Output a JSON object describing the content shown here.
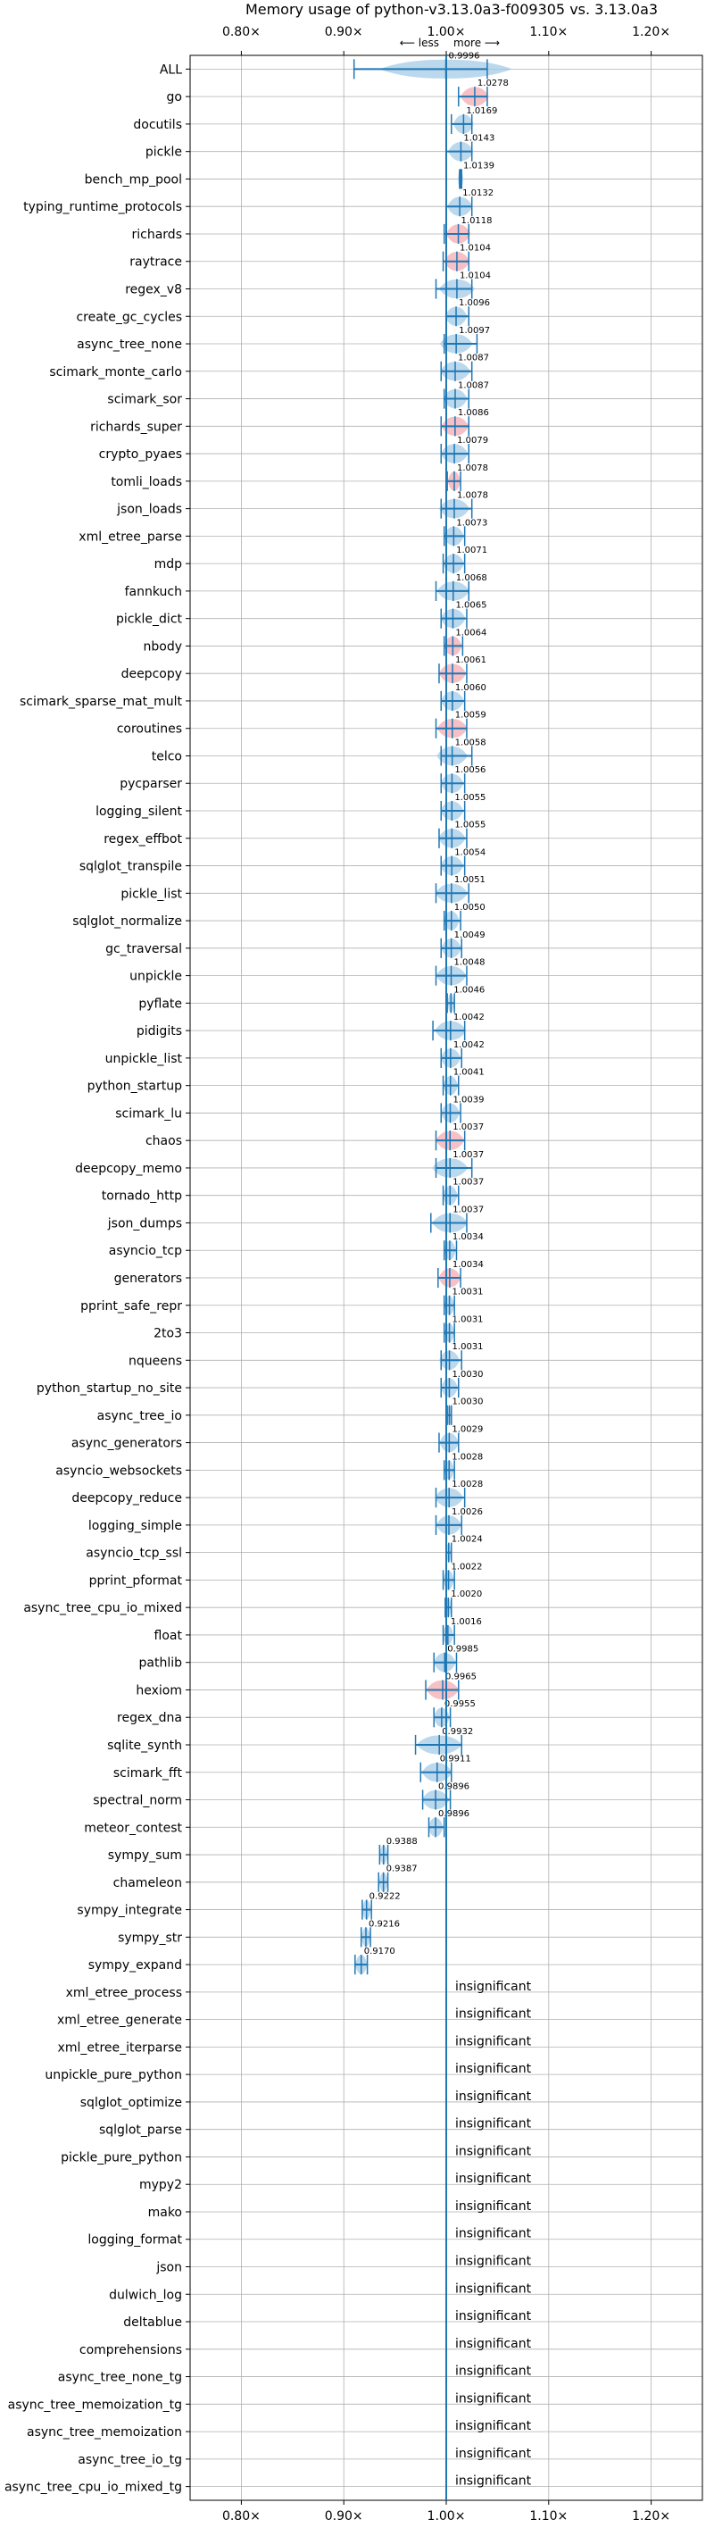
{
  "chart_data": {
    "type": "scatter",
    "title": "Memory usage of python-v3.13.0a3-f009305 vs. 3.13.0a3",
    "xlabel": "",
    "ylabel": "",
    "xlim": [
      0.75,
      1.25
    ],
    "x_ticks": [
      0.8,
      0.9,
      1.0,
      1.1,
      1.2
    ],
    "x_tick_labels": [
      "0.80×",
      "0.90×",
      "1.00×",
      "1.10×",
      "1.20×"
    ],
    "direction_labels": {
      "less": "⟵ less",
      "more": "more ⟶"
    },
    "grid": true,
    "reference_line": 1.0,
    "colors": {
      "normal": "#1f77b4",
      "highlight": "#f4a5ad",
      "error_bar": "#1f77b4",
      "reference": "#1f77b4",
      "grid": "#b0b0b0"
    },
    "insignificant_label": "insignificant",
    "benchmarks": [
      {
        "name": "ALL",
        "value": 0.9996,
        "label": "0.9996",
        "err": [
          0.91,
          1.04
        ],
        "highlight": false
      },
      {
        "name": "go",
        "value": 1.0278,
        "label": "1.0278",
        "err": [
          1.012,
          1.04
        ],
        "highlight": true
      },
      {
        "name": "docutils",
        "value": 1.0169,
        "label": "1.0169",
        "err": [
          1.005,
          1.025
        ],
        "highlight": false
      },
      {
        "name": "pickle",
        "value": 1.0143,
        "label": "1.0143",
        "err": [
          1.0,
          1.025
        ],
        "highlight": false
      },
      {
        "name": "bench_mp_pool",
        "value": 1.0139,
        "label": "1.0139",
        "err": [
          1.013,
          1.015
        ],
        "highlight": false
      },
      {
        "name": "typing_runtime_protocols",
        "value": 1.0132,
        "label": "1.0132",
        "err": [
          1.0,
          1.025
        ],
        "highlight": false
      },
      {
        "name": "richards",
        "value": 1.0118,
        "label": "1.0118",
        "err": [
          0.998,
          1.022
        ],
        "highlight": true
      },
      {
        "name": "raytrace",
        "value": 1.0104,
        "label": "1.0104",
        "err": [
          0.997,
          1.022
        ],
        "highlight": true
      },
      {
        "name": "regex_v8",
        "value": 1.0104,
        "label": "1.0104",
        "err": [
          0.99,
          1.025
        ],
        "highlight": false
      },
      {
        "name": "create_gc_cycles",
        "value": 1.0096,
        "label": "1.0096",
        "err": [
          1.0,
          1.022
        ],
        "highlight": false
      },
      {
        "name": "async_tree_none",
        "value": 1.0097,
        "label": "1.0097",
        "err": [
          0.998,
          1.03
        ],
        "highlight": false
      },
      {
        "name": "scimark_monte_carlo",
        "value": 1.0087,
        "label": "1.0087",
        "err": [
          0.995,
          1.025
        ],
        "highlight": false
      },
      {
        "name": "scimark_sor",
        "value": 1.0087,
        "label": "1.0087",
        "err": [
          0.998,
          1.022
        ],
        "highlight": false
      },
      {
        "name": "richards_super",
        "value": 1.0086,
        "label": "1.0086",
        "err": [
          0.995,
          1.022
        ],
        "highlight": true
      },
      {
        "name": "crypto_pyaes",
        "value": 1.0079,
        "label": "1.0079",
        "err": [
          0.995,
          1.022
        ],
        "highlight": false
      },
      {
        "name": "tomli_loads",
        "value": 1.0078,
        "label": "1.0078",
        "err": [
          1.001,
          1.014
        ],
        "highlight": true
      },
      {
        "name": "json_loads",
        "value": 1.0078,
        "label": "1.0078",
        "err": [
          0.995,
          1.025
        ],
        "highlight": false
      },
      {
        "name": "xml_etree_parse",
        "value": 1.0073,
        "label": "1.0073",
        "err": [
          0.998,
          1.018
        ],
        "highlight": false
      },
      {
        "name": "mdp",
        "value": 1.0071,
        "label": "1.0071",
        "err": [
          0.997,
          1.018
        ],
        "highlight": false
      },
      {
        "name": "fannkuch",
        "value": 1.0068,
        "label": "1.0068",
        "err": [
          0.99,
          1.022
        ],
        "highlight": false
      },
      {
        "name": "pickle_dict",
        "value": 1.0065,
        "label": "1.0065",
        "err": [
          0.995,
          1.02
        ],
        "highlight": false
      },
      {
        "name": "nbody",
        "value": 1.0064,
        "label": "1.0064",
        "err": [
          0.998,
          1.016
        ],
        "highlight": true
      },
      {
        "name": "deepcopy",
        "value": 1.0061,
        "label": "1.0061",
        "err": [
          0.993,
          1.02
        ],
        "highlight": true
      },
      {
        "name": "scimark_sparse_mat_mult",
        "value": 1.006,
        "label": "1.0060",
        "err": [
          0.995,
          1.018
        ],
        "highlight": false
      },
      {
        "name": "coroutines",
        "value": 1.0059,
        "label": "1.0059",
        "err": [
          0.99,
          1.02
        ],
        "highlight": true
      },
      {
        "name": "telco",
        "value": 1.0058,
        "label": "1.0058",
        "err": [
          0.995,
          1.025
        ],
        "highlight": false
      },
      {
        "name": "pycparser",
        "value": 1.0056,
        "label": "1.0056",
        "err": [
          0.995,
          1.018
        ],
        "highlight": false
      },
      {
        "name": "logging_silent",
        "value": 1.0055,
        "label": "1.0055",
        "err": [
          0.995,
          1.018
        ],
        "highlight": false
      },
      {
        "name": "regex_effbot",
        "value": 1.0055,
        "label": "1.0055",
        "err": [
          0.993,
          1.02
        ],
        "highlight": false
      },
      {
        "name": "sqlglot_transpile",
        "value": 1.0054,
        "label": "1.0054",
        "err": [
          0.995,
          1.018
        ],
        "highlight": false
      },
      {
        "name": "pickle_list",
        "value": 1.0051,
        "label": "1.0051",
        "err": [
          0.99,
          1.022
        ],
        "highlight": false
      },
      {
        "name": "sqlglot_normalize",
        "value": 1.005,
        "label": "1.0050",
        "err": [
          0.998,
          1.014
        ],
        "highlight": false
      },
      {
        "name": "gc_traversal",
        "value": 1.0049,
        "label": "1.0049",
        "err": [
          0.995,
          1.015
        ],
        "highlight": false
      },
      {
        "name": "unpickle",
        "value": 1.0048,
        "label": "1.0048",
        "err": [
          0.99,
          1.02
        ],
        "highlight": false
      },
      {
        "name": "pyflate",
        "value": 1.0046,
        "label": "1.0046",
        "err": [
          1.001,
          1.008
        ],
        "highlight": false
      },
      {
        "name": "pidigits",
        "value": 1.0042,
        "label": "1.0042",
        "err": [
          0.987,
          1.018
        ],
        "highlight": false
      },
      {
        "name": "unpickle_list",
        "value": 1.0042,
        "label": "1.0042",
        "err": [
          0.995,
          1.015
        ],
        "highlight": false
      },
      {
        "name": "python_startup",
        "value": 1.0041,
        "label": "1.0041",
        "err": [
          0.997,
          1.012
        ],
        "highlight": false
      },
      {
        "name": "scimark_lu",
        "value": 1.0039,
        "label": "1.0039",
        "err": [
          0.995,
          1.014
        ],
        "highlight": false
      },
      {
        "name": "chaos",
        "value": 1.0037,
        "label": "1.0037",
        "err": [
          0.99,
          1.018
        ],
        "highlight": true
      },
      {
        "name": "deepcopy_memo",
        "value": 1.0037,
        "label": "1.0037",
        "err": [
          0.99,
          1.025
        ],
        "highlight": false
      },
      {
        "name": "tornado_http",
        "value": 1.0037,
        "label": "1.0037",
        "err": [
          0.997,
          1.012
        ],
        "highlight": false
      },
      {
        "name": "json_dumps",
        "value": 1.0037,
        "label": "1.0037",
        "err": [
          0.985,
          1.02
        ],
        "highlight": false
      },
      {
        "name": "asyncio_tcp",
        "value": 1.0034,
        "label": "1.0034",
        "err": [
          0.998,
          1.01
        ],
        "highlight": false
      },
      {
        "name": "generators",
        "value": 1.0034,
        "label": "1.0034",
        "err": [
          0.992,
          1.014
        ],
        "highlight": true
      },
      {
        "name": "pprint_safe_repr",
        "value": 1.0031,
        "label": "1.0031",
        "err": [
          0.998,
          1.008
        ],
        "highlight": false
      },
      {
        "name": "2to3",
        "value": 1.0031,
        "label": "1.0031",
        "err": [
          0.998,
          1.008
        ],
        "highlight": false
      },
      {
        "name": "nqueens",
        "value": 1.0031,
        "label": "1.0031",
        "err": [
          0.995,
          1.015
        ],
        "highlight": false
      },
      {
        "name": "python_startup_no_site",
        "value": 1.003,
        "label": "1.0030",
        "err": [
          0.995,
          1.012
        ],
        "highlight": false
      },
      {
        "name": "async_tree_io",
        "value": 1.003,
        "label": "1.0030",
        "err": [
          1.001,
          1.005
        ],
        "highlight": false
      },
      {
        "name": "async_generators",
        "value": 1.0029,
        "label": "1.0029",
        "err": [
          0.993,
          1.012
        ],
        "highlight": false
      },
      {
        "name": "asyncio_websockets",
        "value": 1.0028,
        "label": "1.0028",
        "err": [
          0.998,
          1.008
        ],
        "highlight": false
      },
      {
        "name": "deepcopy_reduce",
        "value": 1.0028,
        "label": "1.0028",
        "err": [
          0.99,
          1.018
        ],
        "highlight": false
      },
      {
        "name": "logging_simple",
        "value": 1.0026,
        "label": "1.0026",
        "err": [
          0.99,
          1.015
        ],
        "highlight": false
      },
      {
        "name": "asyncio_tcp_ssl",
        "value": 1.0024,
        "label": "1.0024",
        "err": [
          1.0,
          1.005
        ],
        "highlight": false
      },
      {
        "name": "pprint_pformat",
        "value": 1.0022,
        "label": "1.0022",
        "err": [
          0.997,
          1.008
        ],
        "highlight": false
      },
      {
        "name": "async_tree_cpu_io_mixed",
        "value": 1.002,
        "label": "1.0020",
        "err": [
          0.999,
          1.005
        ],
        "highlight": false
      },
      {
        "name": "float",
        "value": 1.0016,
        "label": "1.0016",
        "err": [
          0.997,
          1.008
        ],
        "highlight": false
      },
      {
        "name": "pathlib",
        "value": 0.9985,
        "label": "0.9985",
        "err": [
          0.988,
          1.01
        ],
        "highlight": false
      },
      {
        "name": "hexiom",
        "value": 0.9965,
        "label": "0.9965",
        "err": [
          0.98,
          1.012
        ],
        "highlight": true
      },
      {
        "name": "regex_dna",
        "value": 0.9955,
        "label": "0.9955",
        "err": [
          0.988,
          1.004
        ],
        "highlight": false
      },
      {
        "name": "sqlite_synth",
        "value": 0.9932,
        "label": "0.9932",
        "err": [
          0.97,
          1.015
        ],
        "highlight": false
      },
      {
        "name": "scimark_fft",
        "value": 0.9911,
        "label": "0.9911",
        "err": [
          0.975,
          1.005
        ],
        "highlight": false
      },
      {
        "name": "spectral_norm",
        "value": 0.9896,
        "label": "0.9896",
        "err": [
          0.977,
          1.004
        ],
        "highlight": false
      },
      {
        "name": "meteor_contest",
        "value": 0.9896,
        "label": "0.9896",
        "err": [
          0.983,
          0.998
        ],
        "highlight": false
      },
      {
        "name": "sympy_sum",
        "value": 0.9388,
        "label": "0.9388",
        "err": [
          0.935,
          0.943
        ],
        "highlight": false
      },
      {
        "name": "chameleon",
        "value": 0.9387,
        "label": "0.9387",
        "err": [
          0.934,
          0.943
        ],
        "highlight": false
      },
      {
        "name": "sympy_integrate",
        "value": 0.9222,
        "label": "0.9222",
        "err": [
          0.918,
          0.927
        ],
        "highlight": false
      },
      {
        "name": "sympy_str",
        "value": 0.9216,
        "label": "0.9216",
        "err": [
          0.917,
          0.926
        ],
        "highlight": false
      },
      {
        "name": "sympy_expand",
        "value": 0.917,
        "label": "0.9170",
        "err": [
          0.911,
          0.923
        ],
        "highlight": false
      },
      {
        "name": "xml_etree_process",
        "value": null,
        "label": "insignificant",
        "err": null,
        "highlight": false
      },
      {
        "name": "xml_etree_generate",
        "value": null,
        "label": "insignificant",
        "err": null,
        "highlight": false
      },
      {
        "name": "xml_etree_iterparse",
        "value": null,
        "label": "insignificant",
        "err": null,
        "highlight": false
      },
      {
        "name": "unpickle_pure_python",
        "value": null,
        "label": "insignificant",
        "err": null,
        "highlight": false
      },
      {
        "name": "sqlglot_optimize",
        "value": null,
        "label": "insignificant",
        "err": null,
        "highlight": false
      },
      {
        "name": "sqlglot_parse",
        "value": null,
        "label": "insignificant",
        "err": null,
        "highlight": false
      },
      {
        "name": "pickle_pure_python",
        "value": null,
        "label": "insignificant",
        "err": null,
        "highlight": false
      },
      {
        "name": "mypy2",
        "value": null,
        "label": "insignificant",
        "err": null,
        "highlight": false
      },
      {
        "name": "mako",
        "value": null,
        "label": "insignificant",
        "err": null,
        "highlight": false
      },
      {
        "name": "logging_format",
        "value": null,
        "label": "insignificant",
        "err": null,
        "highlight": false
      },
      {
        "name": "json",
        "value": null,
        "label": "insignificant",
        "err": null,
        "highlight": false
      },
      {
        "name": "dulwich_log",
        "value": null,
        "label": "insignificant",
        "err": null,
        "highlight": false
      },
      {
        "name": "deltablue",
        "value": null,
        "label": "insignificant",
        "err": null,
        "highlight": false
      },
      {
        "name": "comprehensions",
        "value": null,
        "label": "insignificant",
        "err": null,
        "highlight": false
      },
      {
        "name": "async_tree_none_tg",
        "value": null,
        "label": "insignificant",
        "err": null,
        "highlight": false
      },
      {
        "name": "async_tree_memoization_tg",
        "value": null,
        "label": "insignificant",
        "err": null,
        "highlight": false
      },
      {
        "name": "async_tree_memoization",
        "value": null,
        "label": "insignificant",
        "err": null,
        "highlight": false
      },
      {
        "name": "async_tree_io_tg",
        "value": null,
        "label": "insignificant",
        "err": null,
        "highlight": false
      },
      {
        "name": "async_tree_cpu_io_mixed_tg",
        "value": null,
        "label": "insignificant",
        "err": null,
        "highlight": false
      }
    ]
  }
}
